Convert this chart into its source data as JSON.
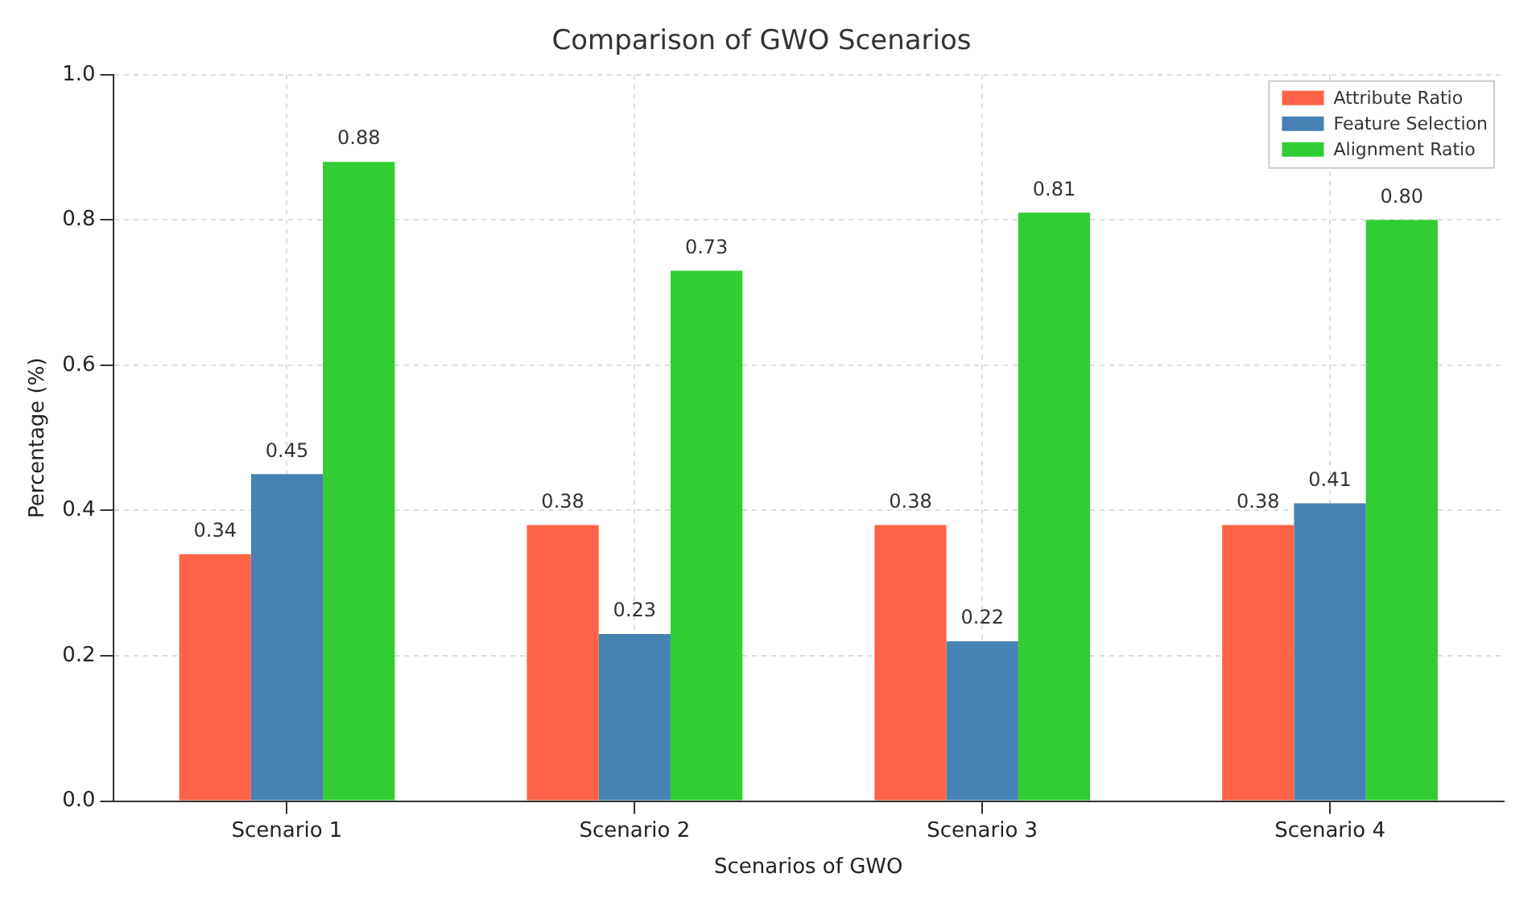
{
  "chart_data": {
    "type": "bar",
    "title": "Comparison of GWO Scenarios",
    "xlabel": "Scenarios of GWO",
    "ylabel": "Percentage (%)",
    "categories": [
      "Scenario 1",
      "Scenario 2",
      "Scenario 3",
      "Scenario 4"
    ],
    "series": [
      {
        "name": "Attribute Ratio",
        "color": "#ff6347",
        "values": [
          0.34,
          0.38,
          0.38,
          0.38
        ],
        "value_labels": [
          "0.34",
          "0.38",
          "0.38",
          "0.38"
        ]
      },
      {
        "name": "Feature Selection",
        "color": "#4682b4",
        "values": [
          0.45,
          0.23,
          0.22,
          0.41
        ],
        "value_labels": [
          "0.45",
          "0.23",
          "0.22",
          "0.41"
        ]
      },
      {
        "name": "Alignment Ratio",
        "color": "#32cd32",
        "values": [
          0.88,
          0.73,
          0.81,
          0.8
        ],
        "value_labels": [
          "0.88",
          "0.73",
          "0.81",
          "0.80"
        ]
      }
    ],
    "ylim": [
      0,
      1
    ],
    "yticks": [
      {
        "value": 0,
        "label": "0.0"
      },
      {
        "value": 0.2,
        "label": "0.2"
      },
      {
        "value": 0.4,
        "label": "0.4"
      },
      {
        "value": 0.6,
        "label": "0.6"
      },
      {
        "value": 0.8,
        "label": "0.8"
      },
      {
        "value": 1,
        "label": "1.0"
      }
    ],
    "grid": true,
    "legend": "top right"
  }
}
